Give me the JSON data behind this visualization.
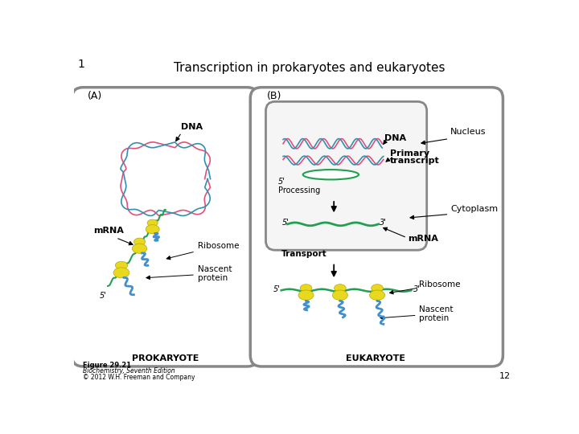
{
  "title": "Transcription in prokaryotes and eukaryotes",
  "slide_number": "1",
  "page_number": "12",
  "background_color": "#ffffff",
  "figure_caption_line1": "Figure 29.21",
  "figure_caption_line2": "Biochemistry, Seventh Edition",
  "figure_caption_line3": "© 2012 W.H. Freeman and Company",
  "label_A": "(A)",
  "label_B": "(B)",
  "prokaryote_label": "PROKARYOTE",
  "eukaryote_label": "EUKARYOTE",
  "cell_color": "#888888",
  "dna_pink": "#e0507a",
  "dna_blue": "#3090b0",
  "mrna_green": "#20a050",
  "ribosome_yellow": "#e8d820",
  "nascent_blue": "#4090d0",
  "nucleus_fill": "#f5f5f5"
}
